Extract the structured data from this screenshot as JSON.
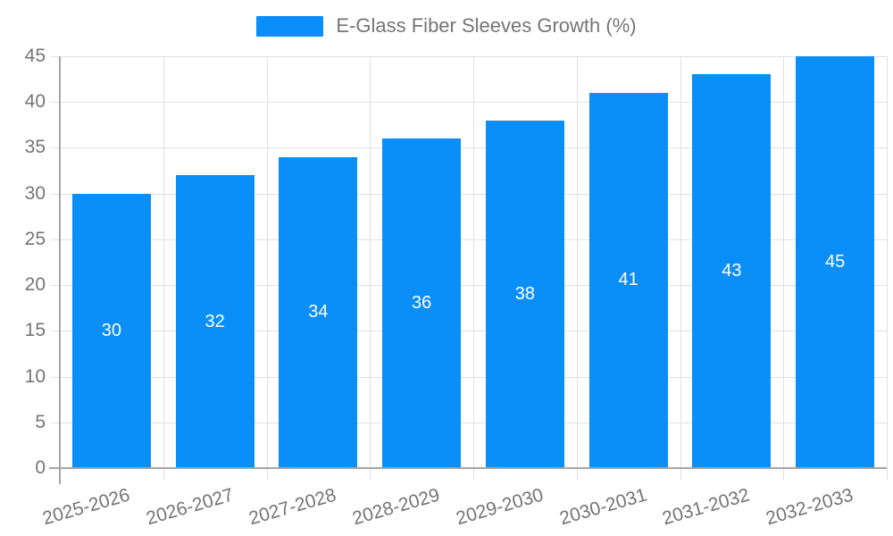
{
  "chart_data": {
    "type": "bar",
    "title": "",
    "xlabel": "",
    "ylabel": "",
    "categories": [
      "2025-2026",
      "2026-2027",
      "2027-2028",
      "2028-2029",
      "2029-2030",
      "2030-2031",
      "2031-2032",
      "2032-2033"
    ],
    "series": [
      {
        "name": "E-Glass Fiber Sleeves Growth (%)",
        "values": [
          30,
          32,
          34,
          36,
          38,
          41,
          43,
          45
        ]
      }
    ],
    "ylim": [
      0,
      45
    ],
    "ytick_step": 5,
    "ytick_labels": [
      "0",
      "5",
      "10",
      "15",
      "20",
      "25",
      "30",
      "35",
      "40",
      "45"
    ],
    "grid": true,
    "legend_position": "top-center",
    "value_labels": "inside-center"
  },
  "legend": {
    "label": "E-Glass Fiber Sleeves Growth (%)"
  },
  "colors": {
    "bar": "#0A8EF8",
    "value_label": "#ffffff",
    "axis_text": "#757575",
    "grid_line": "#e0e0e0",
    "axis_line": "#a6a6a6",
    "background": "#ffffff"
  }
}
